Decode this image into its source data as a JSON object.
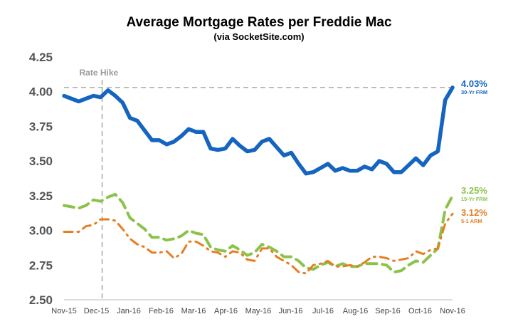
{
  "chart_data": {
    "type": "line",
    "title": "Average Mortgage Rates per Freddie Mac",
    "subtitle": "(via SocketSite.com)",
    "xlabel": "",
    "ylabel": "",
    "ylim": [
      2.5,
      4.25
    ],
    "yticks": [
      "4.25",
      "4.00",
      "3.75",
      "3.50",
      "3.25",
      "3.00",
      "2.75",
      "2.50"
    ],
    "x_tick_labels": [
      "Nov-15",
      "Dec-15",
      "Jan-16",
      "Feb-16",
      "Mar-16",
      "Apr-16",
      "May-16",
      "Jun-16",
      "Jul-16",
      "Aug-16",
      "Sep-16",
      "Oct-16",
      "Nov-16"
    ],
    "grid": false,
    "x_period": "weekly, Nov-15 to Nov-16",
    "reference_line_value": 4.03,
    "annotation": {
      "label": "Rate Hike",
      "at_tick": "Dec-15"
    },
    "series": [
      {
        "name": "30-Yr FRM",
        "end_label": "4.03%",
        "color": "#1565C0",
        "style": "solid",
        "values": [
          3.97,
          3.95,
          3.93,
          3.95,
          3.97,
          3.96,
          4.01,
          3.97,
          3.92,
          3.81,
          3.79,
          3.72,
          3.65,
          3.65,
          3.62,
          3.64,
          3.68,
          3.73,
          3.71,
          3.71,
          3.59,
          3.58,
          3.59,
          3.66,
          3.61,
          3.57,
          3.58,
          3.64,
          3.66,
          3.6,
          3.54,
          3.56,
          3.48,
          3.41,
          3.42,
          3.45,
          3.48,
          3.43,
          3.45,
          3.43,
          3.43,
          3.46,
          3.44,
          3.5,
          3.48,
          3.42,
          3.42,
          3.47,
          3.52,
          3.47,
          3.54,
          3.57,
          3.94,
          4.03
        ]
      },
      {
        "name": "15-Yr FRM",
        "end_label": "3.25%",
        "color": "#8BC34A",
        "style": "dashed",
        "values": [
          3.18,
          3.17,
          3.16,
          3.18,
          3.22,
          3.21,
          3.24,
          3.26,
          3.2,
          3.09,
          3.05,
          3.01,
          2.95,
          2.95,
          2.93,
          2.94,
          2.96,
          3.0,
          2.98,
          2.97,
          2.88,
          2.86,
          2.85,
          2.89,
          2.86,
          2.82,
          2.84,
          2.9,
          2.88,
          2.85,
          2.81,
          2.81,
          2.78,
          2.73,
          2.72,
          2.75,
          2.77,
          2.74,
          2.76,
          2.74,
          2.74,
          2.76,
          2.76,
          2.76,
          2.75,
          2.7,
          2.71,
          2.75,
          2.78,
          2.77,
          2.82,
          2.87,
          3.15,
          3.25
        ]
      },
      {
        "name": "5-1 ARM",
        "end_label": "3.12%",
        "color": "#E67E22",
        "style": "dash-dot",
        "values": [
          2.99,
          2.99,
          2.99,
          3.03,
          3.04,
          3.08,
          3.08,
          3.07,
          3.01,
          2.94,
          2.9,
          2.88,
          2.84,
          2.84,
          2.85,
          2.8,
          2.83,
          2.92,
          2.92,
          2.89,
          2.85,
          2.84,
          2.81,
          2.85,
          2.84,
          2.79,
          2.78,
          2.87,
          2.87,
          2.81,
          2.78,
          2.75,
          2.7,
          2.69,
          2.75,
          2.76,
          2.78,
          2.74,
          2.74,
          2.75,
          2.74,
          2.77,
          2.81,
          2.81,
          2.8,
          2.78,
          2.79,
          2.8,
          2.85,
          2.83,
          2.86,
          2.87,
          3.05,
          3.12
        ]
      }
    ]
  }
}
